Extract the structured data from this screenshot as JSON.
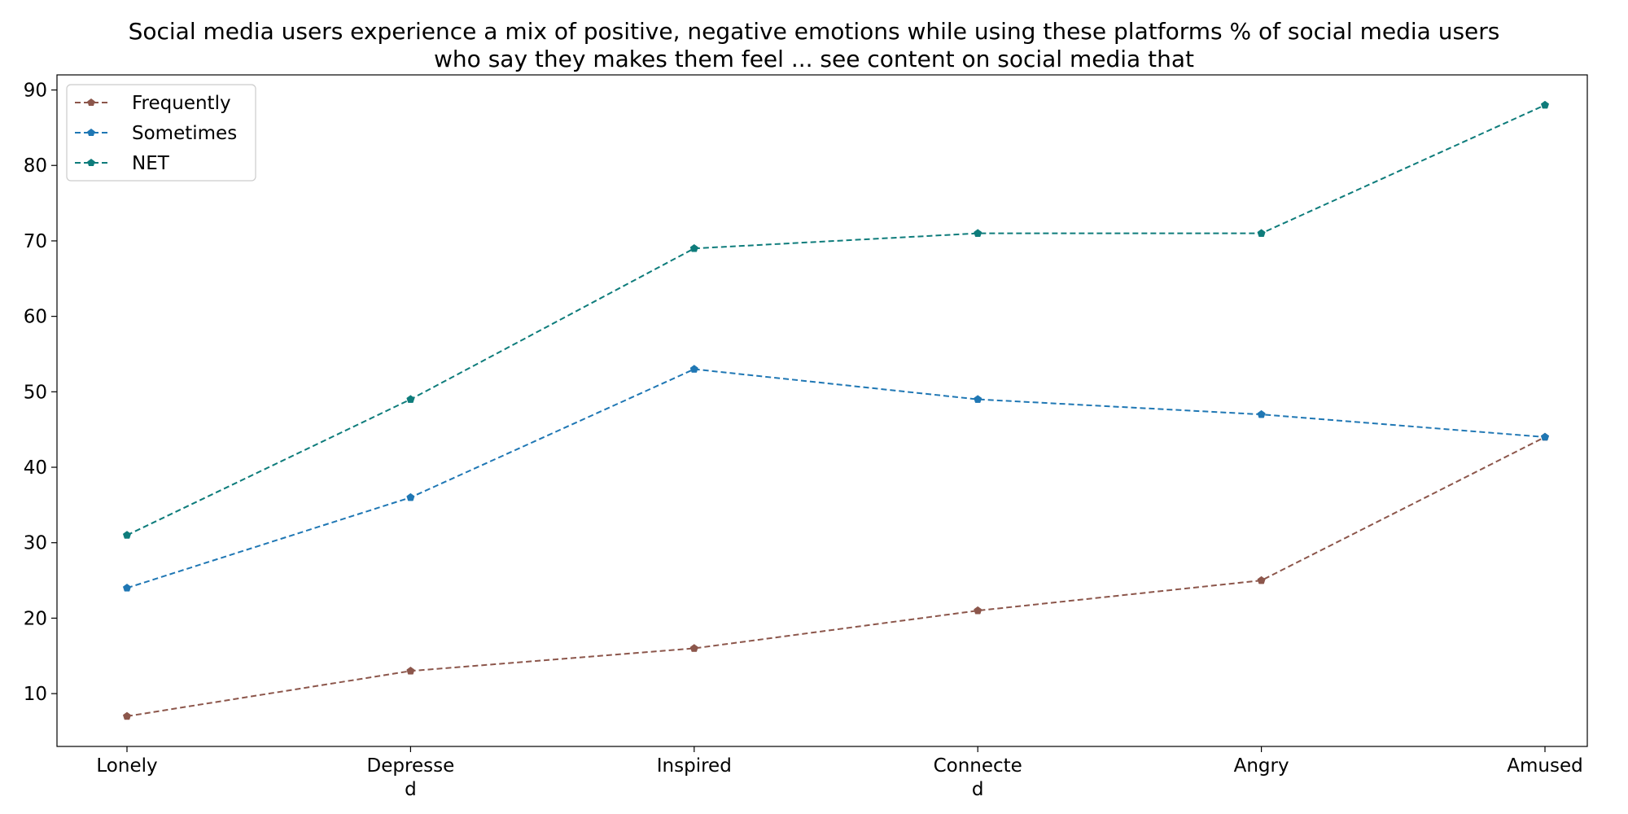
{
  "chart_data": {
    "type": "line",
    "title": "Social media users experience a mix of positive, negative emotions while using these platforms % of social media users who say they makes them feel ... see content on social media that",
    "title_lines": [
      "Social media users experience a mix of positive, negative emotions while using these platforms % of social media users",
      "who say they makes them feel ... see content on social media that"
    ],
    "xlabel": "",
    "ylabel": "",
    "categories": [
      "Lonely",
      "Depressed",
      "Inspired",
      "Connected",
      "Angry",
      "Amused"
    ],
    "category_label_lines": [
      [
        "Lonely"
      ],
      [
        "Depresse",
        "d"
      ],
      [
        "Inspired"
      ],
      [
        "Connecte",
        "d"
      ],
      [
        "Angry"
      ],
      [
        "Amused"
      ]
    ],
    "ylim": [
      3,
      92
    ],
    "yticks": [
      10,
      20,
      30,
      40,
      50,
      60,
      70,
      80,
      90
    ],
    "grid": false,
    "legend_position": "top-left",
    "line_style": "dashed",
    "marker": "pentagon",
    "series": [
      {
        "name": "Frequently",
        "color": "#8c564b",
        "values": [
          7,
          13,
          16,
          21,
          25,
          44
        ]
      },
      {
        "name": "Sometimes",
        "color": "#1f77b4",
        "values": [
          24,
          36,
          53,
          49,
          47,
          44
        ]
      },
      {
        "name": "NET",
        "color": "#0e7c7b",
        "values": [
          31,
          49,
          69,
          71,
          71,
          88
        ]
      }
    ]
  }
}
